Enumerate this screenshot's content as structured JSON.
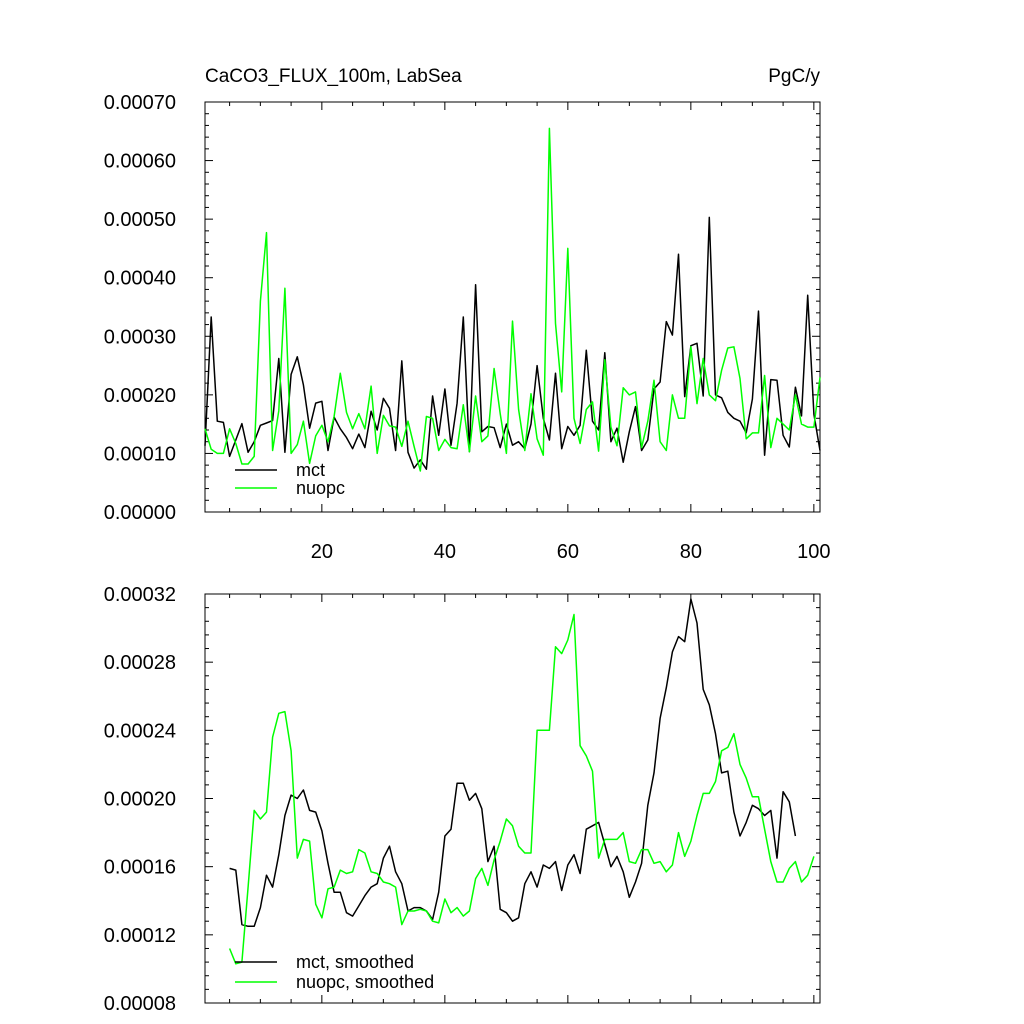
{
  "chart_data": [
    {
      "type": "line",
      "title": "CaCO3_FLUX_100m, LabSea",
      "units": "PgC/y",
      "xlim": [
        1,
        101
      ],
      "ylim": [
        0.0,
        0.0007
      ],
      "x_major_ticks": [
        20,
        40,
        60,
        80,
        100
      ],
      "x_tick_labels": [
        "20",
        "40",
        "60",
        "80",
        "100"
      ],
      "y_major_ticks": [
        0.0,
        0.0001,
        0.0002,
        0.0003,
        0.0004,
        0.0005,
        0.0006,
        0.0007
      ],
      "y_tick_labels": [
        "0.00000",
        "0.00010",
        "0.00020",
        "0.00030",
        "0.00040",
        "0.00050",
        "0.00060",
        "0.00070"
      ],
      "legend_position": "bottom-left",
      "series": [
        {
          "name": "mct",
          "color": "#000000",
          "x_start": 1,
          "values": [
            0.000113,
            0.000333,
            0.000155,
            0.000153,
            9.5e-05,
            0.000123,
            0.000151,
            0.000102,
            0.00012,
            0.000148,
            0.000152,
            0.000156,
            0.000262,
            0.000102,
            0.000235,
            0.000265,
            0.000217,
            0.000143,
            0.000186,
            0.000189,
            0.000105,
            0.000162,
            0.000142,
            0.000127,
            0.000108,
            0.000133,
            0.00011,
            0.000172,
            0.00014,
            0.000194,
            0.000177,
            0.000105,
            0.000258,
            0.000102,
            7.5e-05,
            8.9e-05,
            7.3e-05,
            0.000198,
            0.000131,
            0.00021,
            0.000114,
            0.000186,
            0.000333,
            0.000103,
            0.000388,
            0.000137,
            0.000146,
            0.000144,
            0.00011,
            0.00015,
            0.000114,
            0.00012,
            0.000108,
            0.00015,
            0.00025,
            0.00016,
            0.000123,
            0.000237,
            0.000108,
            0.000146,
            0.000131,
            0.000148,
            0.000276,
            0.000155,
            0.00014,
            0.000272,
            0.00012,
            0.000143,
            8.5e-05,
            0.000137,
            0.00018,
            0.000105,
            0.000123,
            0.00021,
            0.000222,
            0.000325,
            0.000302,
            0.00044,
            0.000197,
            0.000284,
            0.000288,
            0.000198,
            0.000503,
            0.0002,
            0.000195,
            0.00017,
            0.00016,
            0.000155,
            0.000135,
            0.000193,
            0.000343,
            9.7e-05,
            0.000226,
            0.000225,
            0.000131,
            0.000111,
            0.000213,
            0.000164,
            0.00037,
            0.000167,
            0.000105
          ]
        },
        {
          "name": "nuopc",
          "color": "#00ff00",
          "x_start": 1,
          "values": [
            0.000142,
            0.000107,
            0.0001,
            0.0001,
            0.000142,
            0.000117,
            8.2e-05,
            8.2e-05,
            9.5e-05,
            0.00036,
            0.000477,
            0.000105,
            0.000173,
            0.000382,
            0.0001,
            0.000115,
            0.000155,
            8.3e-05,
            0.00013,
            0.000148,
            0.00012,
            0.000163,
            0.000237,
            0.00017,
            0.000142,
            0.000168,
            0.000142,
            0.000215,
            0.0001,
            0.000165,
            0.000147,
            0.000145,
            0.000112,
            0.000155,
            0.000112,
            7e-05,
            0.000163,
            0.00016,
            0.000105,
            0.000124,
            0.00011,
            0.000108,
            0.000183,
            0.000103,
            0.000198,
            0.00012,
            0.00013,
            0.000245,
            0.000168,
            0.0001,
            0.000326,
            0.000175,
            0.000105,
            0.000202,
            0.000125,
            9.7e-05,
            0.000655,
            0.000322,
            0.000205,
            0.00045,
            0.00016,
            0.000117,
            0.000175,
            0.000188,
            0.000104,
            0.00026,
            0.000145,
            0.000113,
            0.000212,
            0.0002,
            0.000205,
            0.00011,
            0.000155,
            0.000225,
            0.00012,
            0.000105,
            0.0002,
            0.00016,
            0.00016,
            0.000282,
            0.000185,
            0.000262,
            0.0002,
            0.00019,
            0.000242,
            0.00028,
            0.000282,
            0.000228,
            0.000125,
            0.000135,
            0.000135,
            0.000233,
            0.00011,
            0.00016,
            0.00015,
            0.00014,
            0.0002,
            0.00015,
            0.000145,
            0.000145,
            0.00023
          ]
        }
      ]
    },
    {
      "type": "line",
      "title": "",
      "units": "",
      "xlim": [
        1,
        101
      ],
      "ylim": [
        8e-05,
        0.00032
      ],
      "x_major_ticks": [
        20,
        40,
        60,
        80,
        100
      ],
      "x_tick_labels": [],
      "y_major_ticks": [
        8e-05,
        0.00012,
        0.00016,
        0.0002,
        0.00024,
        0.00028,
        0.00032
      ],
      "y_tick_labels": [
        "0.00008",
        "0.00012",
        "0.00016",
        "0.00020",
        "0.00024",
        "0.00028",
        "0.00032"
      ],
      "legend_position": "bottom-left",
      "series": [
        {
          "name": "mct, smoothed",
          "color": "#000000",
          "x_start": 5,
          "values": [
            0.000159,
            0.000158,
            0.000126,
            0.000125,
            0.000125,
            0.000136,
            0.000155,
            0.000148,
            0.000167,
            0.00019,
            0.000202,
            0.0002,
            0.000205,
            0.000193,
            0.000192,
            0.000181,
            0.000162,
            0.000145,
            0.000145,
            0.000133,
            0.000131,
            0.000137,
            0.000143,
            0.000148,
            0.00015,
            0.000165,
            0.000172,
            0.000157,
            0.00015,
            0.000134,
            0.000136,
            0.000136,
            0.000134,
            0.000129,
            0.000145,
            0.000178,
            0.000182,
            0.000209,
            0.000209,
            0.000199,
            0.000203,
            0.000194,
            0.000163,
            0.000172,
            0.000135,
            0.000133,
            0.000128,
            0.00013,
            0.00015,
            0.000157,
            0.000148,
            0.000161,
            0.000159,
            0.000163,
            0.000146,
            0.000161,
            0.000167,
            0.000156,
            0.000182,
            0.000184,
            0.000186,
            0.000173,
            0.00016,
            0.000166,
            0.000157,
            0.000142,
            0.000151,
            0.000162,
            0.000196,
            0.000215,
            0.000247,
            0.000265,
            0.000286,
            0.000295,
            0.000292,
            0.000317,
            0.000303,
            0.000264,
            0.000255,
            0.000238,
            0.000215,
            0.000216,
            0.000192,
            0.000178,
            0.000186,
            0.000196,
            0.000194,
            0.00019,
            0.000193,
            0.000165,
            0.000204,
            0.000198,
            0.000178
          ]
        },
        {
          "name": "nuopc, smoothed",
          "color": "#00ff00",
          "x_start": 5,
          "values": [
            0.000112,
            0.000103,
            0.000104,
            0.000148,
            0.000193,
            0.000188,
            0.000192,
            0.000236,
            0.00025,
            0.000251,
            0.000228,
            0.000165,
            0.000176,
            0.000175,
            0.000138,
            0.00013,
            0.000147,
            0.000148,
            0.000158,
            0.000156,
            0.000157,
            0.00017,
            0.000168,
            0.000157,
            0.000156,
            0.000151,
            0.00015,
            0.000148,
            0.000126,
            0.000134,
            0.000134,
            0.000135,
            0.000134,
            0.000128,
            0.000127,
            0.000141,
            0.000133,
            0.000136,
            0.000131,
            0.000134,
            0.000153,
            0.000159,
            0.000149,
            0.000164,
            0.000175,
            0.000188,
            0.000184,
            0.000172,
            0.000168,
            0.000168,
            0.00024,
            0.00024,
            0.00024,
            0.000289,
            0.000285,
            0.000293,
            0.000308,
            0.000231,
            0.000225,
            0.000216,
            0.000165,
            0.000176,
            0.000176,
            0.000176,
            0.00018,
            0.000163,
            0.000162,
            0.00017,
            0.00017,
            0.000162,
            0.000163,
            0.000157,
            0.000161,
            0.00018,
            0.000166,
            0.000175,
            0.00019,
            0.000203,
            0.000203,
            0.00021,
            0.000228,
            0.00023,
            0.000238,
            0.00022,
            0.000212,
            0.000201,
            0.000201,
            0.000182,
            0.000163,
            0.000151,
            0.000151,
            0.000159,
            0.000163,
            0.000151,
            0.000155,
            0.000166
          ]
        }
      ]
    }
  ]
}
